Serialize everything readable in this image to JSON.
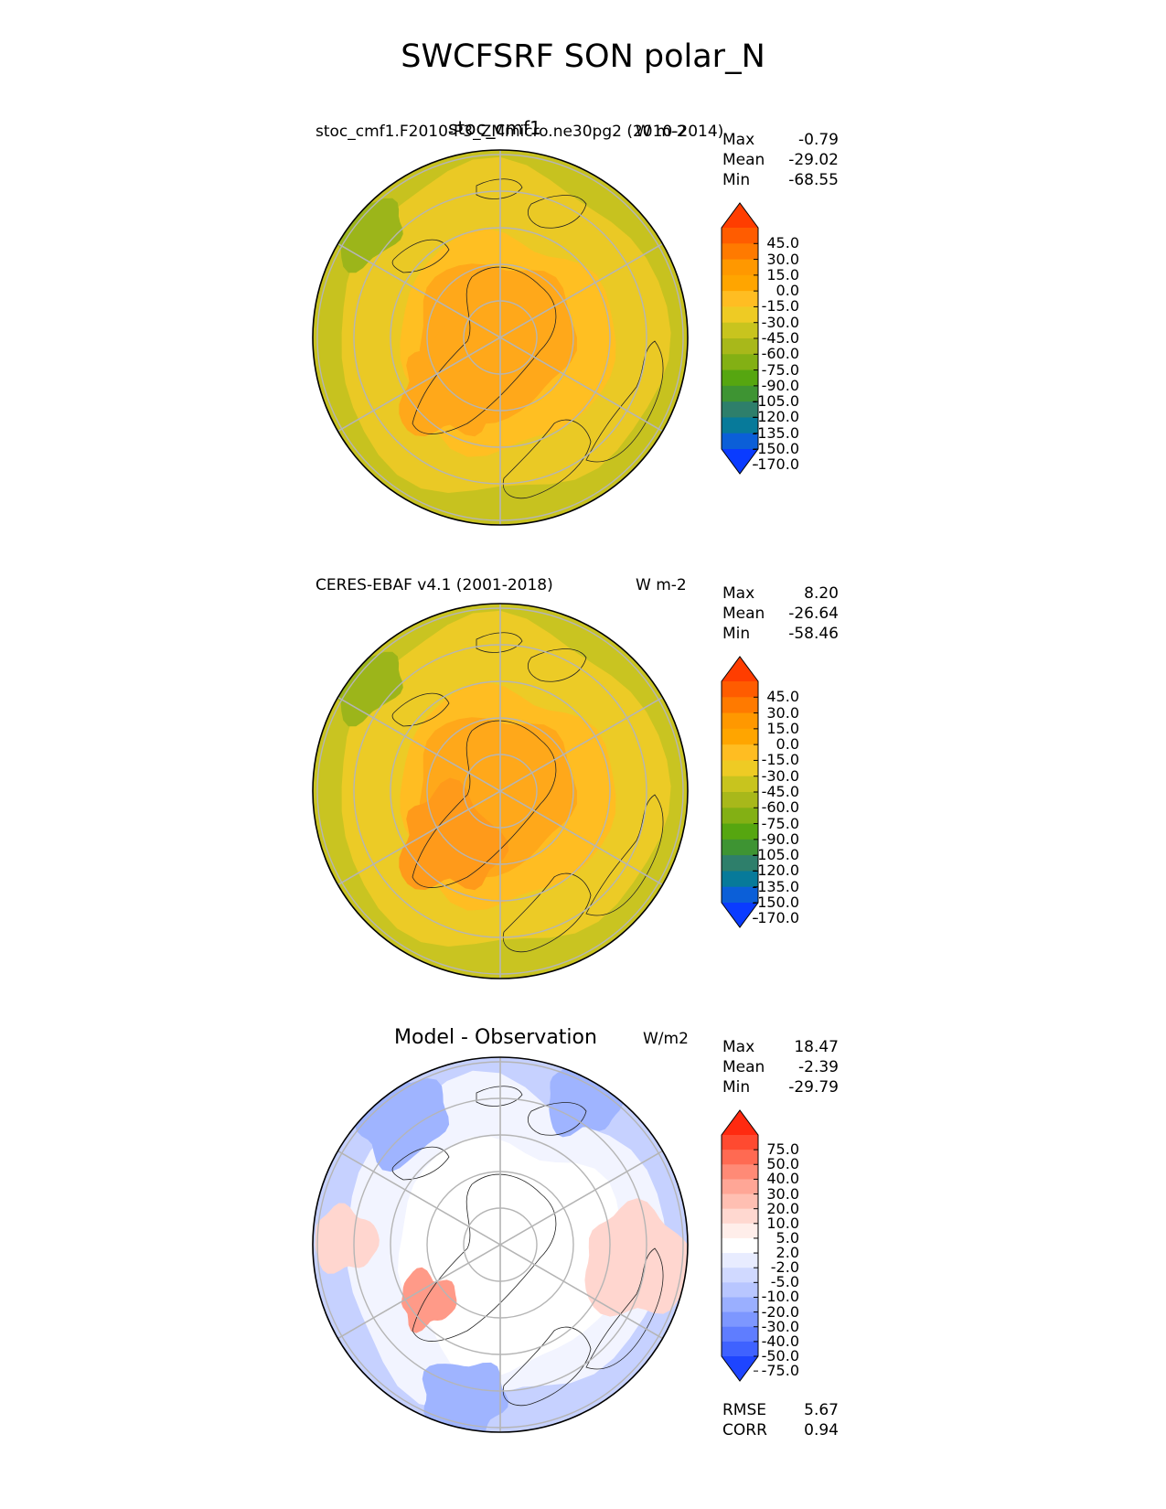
{
  "figure": {
    "title": "SWCFSRF SON polar_N"
  },
  "panels": [
    {
      "left_label": "stoc_cmf1.F2010-P3_ZMmicro.ne30pg2 (2010-2014)",
      "center_title": "stoc_cmf1",
      "units": "W m-2",
      "stats": [
        {
          "label": "Max",
          "value": "-0.79"
        },
        {
          "label": "Mean",
          "value": "-29.02"
        },
        {
          "label": "Min",
          "value": "-68.55"
        }
      ],
      "colorbar_ticks": [
        "45.0",
        "30.0",
        "15.0",
        "0.0",
        "-15.0",
        "-30.0",
        "-45.0",
        "-60.0",
        "-75.0",
        "-90.0",
        "-105.0",
        "-120.0",
        "-135.0",
        "-150.0",
        "-170.0"
      ],
      "colorbar_colors": [
        "#ff3d00",
        "#ff5c00",
        "#ff7a00",
        "#ff9800",
        "#ffa500",
        "#ffbd22",
        "#eecb24",
        "#c8c41e",
        "#a8b81a",
        "#83b014",
        "#56a610",
        "#3e9433",
        "#2e7f6b",
        "#077a9a",
        "#0b5fd8",
        "#0a3bff"
      ]
    },
    {
      "left_label": "CERES-EBAF v4.1 (2001-2018)",
      "center_title": "",
      "units": "W m-2",
      "stats": [
        {
          "label": "Max",
          "value": "8.20"
        },
        {
          "label": "Mean",
          "value": "-26.64"
        },
        {
          "label": "Min",
          "value": "-58.46"
        }
      ],
      "colorbar_ticks": [
        "45.0",
        "30.0",
        "15.0",
        "0.0",
        "-15.0",
        "-30.0",
        "-45.0",
        "-60.0",
        "-75.0",
        "-90.0",
        "-105.0",
        "-120.0",
        "-135.0",
        "-150.0",
        "-170.0"
      ],
      "colorbar_colors": [
        "#ff3d00",
        "#ff5c00",
        "#ff7a00",
        "#ff9800",
        "#ffa500",
        "#ffbd22",
        "#eecb24",
        "#c8c41e",
        "#a8b81a",
        "#83b014",
        "#56a610",
        "#3e9433",
        "#2e7f6b",
        "#077a9a",
        "#0b5fd8",
        "#0a3bff"
      ]
    },
    {
      "left_label": "",
      "center_title": "Model - Observation",
      "units": "W/m2",
      "stats": [
        {
          "label": "Max",
          "value": "18.47"
        },
        {
          "label": "Mean",
          "value": "-2.39"
        },
        {
          "label": "Min",
          "value": "-29.79"
        }
      ],
      "colorbar_ticks": [
        "75.0",
        "50.0",
        "40.0",
        "30.0",
        "20.0",
        "10.0",
        "5.0",
        "2.0",
        "-2.0",
        "-5.0",
        "-10.0",
        "-20.0",
        "-30.0",
        "-40.0",
        "-50.0",
        "-75.0"
      ],
      "colorbar_colors": [
        "#ff2a10",
        "#ff4a30",
        "#ff6a52",
        "#ff8a76",
        "#ffa696",
        "#ffbfb2",
        "#ffd8d0",
        "#ffeeea",
        "#ffffff",
        "#e8ecff",
        "#d0d9ff",
        "#b8c6ff",
        "#9aafff",
        "#7d97ff",
        "#5f7dff",
        "#3f62ff",
        "#1e45ff"
      ],
      "extra_stats": [
        {
          "label": "RMSE",
          "value": "5.67"
        },
        {
          "label": "CORR",
          "value": "0.94"
        }
      ]
    }
  ],
  "map_colors": {
    "p1": {
      "outer": "#c7c21f",
      "mid": "#eac925",
      "inner": "#ffbf22",
      "core": "#ffa81a",
      "land": "#ffa81a"
    },
    "p2": {
      "outer": "#c9c421",
      "mid": "#eccb26",
      "inner": "#ffbd22",
      "core": "#ffa81a",
      "land": "#ff9a1a"
    },
    "p3": {
      "outer": "#c6d1ff",
      "mid": "#f2f4ff",
      "inner": "#ffffff",
      "core": "#ffffff",
      "pink": "#ffd6cf",
      "blue": "#9fb4ff"
    }
  }
}
